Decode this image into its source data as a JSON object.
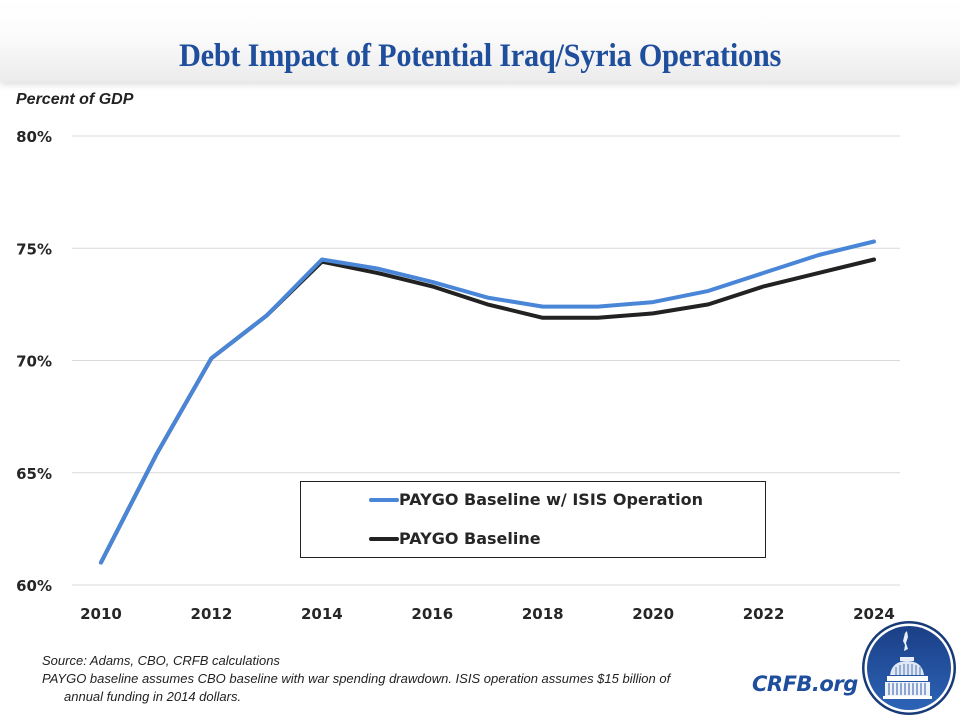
{
  "header": {
    "title": "Debt Impact of Potential Iraq/Syria Operations"
  },
  "chart_data": {
    "type": "line",
    "title": "Debt Impact of Potential Iraq/Syria Operations",
    "xlabel": "",
    "ylabel": "Percent of GDP",
    "x": [
      2010,
      2011,
      2012,
      2013,
      2014,
      2015,
      2016,
      2017,
      2018,
      2019,
      2020,
      2021,
      2022,
      2023,
      2024
    ],
    "series": [
      {
        "name": "PAYGO Baseline w/ ISIS Operation",
        "color": "#4a86d8",
        "values": [
          61.0,
          65.8,
          70.1,
          72.0,
          74.5,
          74.1,
          73.5,
          72.8,
          72.4,
          72.4,
          72.6,
          73.1,
          73.9,
          74.7,
          75.3
        ]
      },
      {
        "name": "PAYGO Baseline",
        "color": "#222222",
        "values": [
          61.0,
          65.8,
          70.1,
          72.0,
          74.4,
          73.9,
          73.3,
          72.5,
          71.9,
          71.9,
          72.1,
          72.5,
          73.3,
          73.9,
          74.5
        ]
      }
    ],
    "ylim": [
      60,
      80
    ],
    "yticks": [
      60,
      65,
      70,
      75,
      80
    ],
    "ytick_labels": [
      "60%",
      "65%",
      "70%",
      "75%",
      "80%"
    ],
    "xticks": [
      2010,
      2012,
      2014,
      2016,
      2018,
      2020,
      2022,
      2024
    ],
    "xtick_labels": [
      "2010",
      "2012",
      "2014",
      "2016",
      "2018",
      "2020",
      "2022",
      "2024"
    ],
    "grid": true,
    "legend_position": "center-bottom"
  },
  "legend": {
    "items": [
      {
        "label": "PAYGO Baseline w/ ISIS Operation",
        "color": "#4a86d8"
      },
      {
        "label": "PAYGO Baseline",
        "color": "#222222"
      }
    ]
  },
  "footer": {
    "source": "Source: Adams, CBO, CRFB calculations",
    "note": "PAYGO baseline assumes CBO baseline with war spending drawdown.  ISIS operation assumes $15 billion of annual funding in 2014 dollars.",
    "brand": "CRFB.org",
    "logo_icon": "capitol-dome-seal-icon"
  }
}
